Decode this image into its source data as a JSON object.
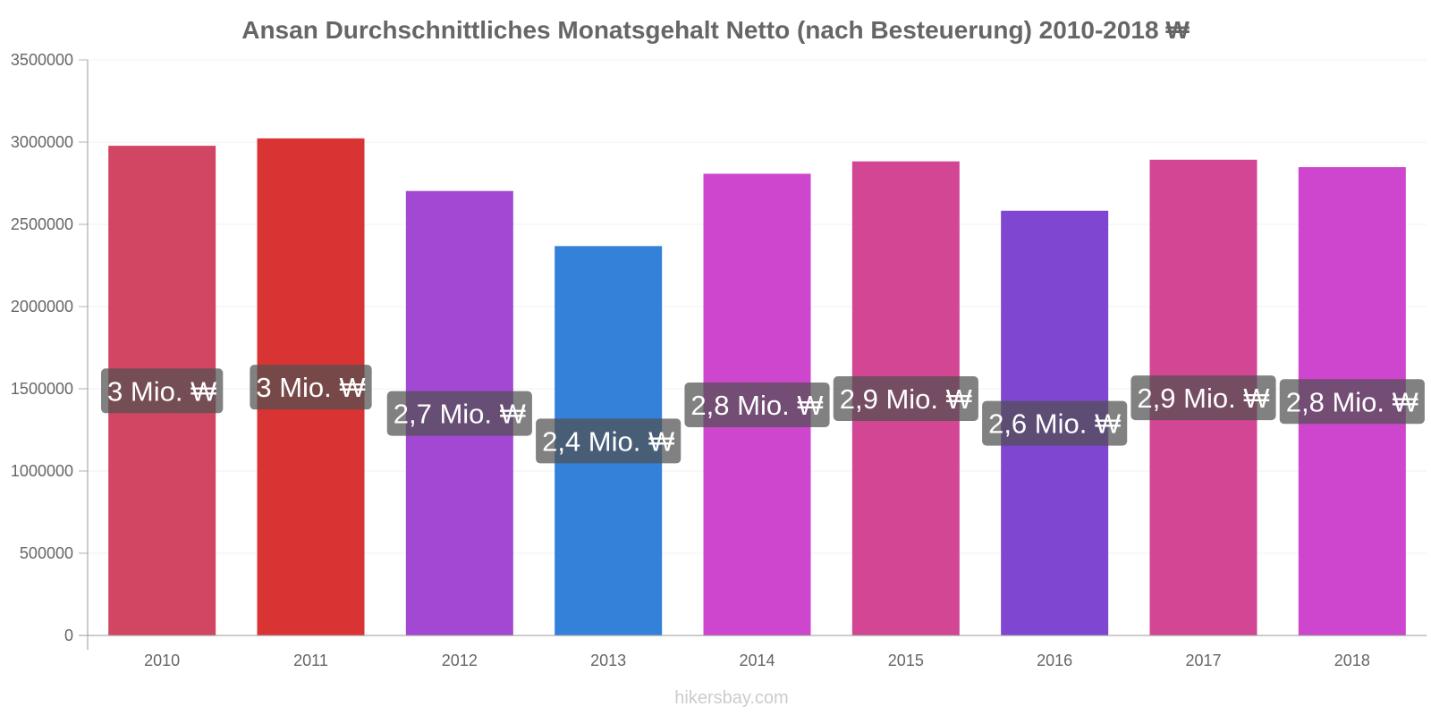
{
  "chart_data": {
    "type": "bar",
    "title": "Ansan Durchschnittliches Monatsgehalt Netto (nach Besteuerung) 2010-2018 ₩",
    "xlabel": "",
    "ylabel": "",
    "categories": [
      "2010",
      "2011",
      "2012",
      "2013",
      "2014",
      "2015",
      "2016",
      "2017",
      "2018"
    ],
    "values": [
      2975000,
      3020000,
      2700000,
      2365000,
      2805000,
      2880000,
      2580000,
      2890000,
      2845000
    ],
    "data_labels": [
      "3 Mio. ₩",
      "3 Mio. ₩",
      "2,7 Mio. ₩",
      "2,4 Mio. ₩",
      "2,8 Mio. ₩",
      "2,9 Mio. ₩",
      "2,6 Mio. ₩",
      "2,9 Mio. ₩",
      "2,8 Mio. ₩"
    ],
    "bar_colors": [
      "#d64866",
      "#e03535",
      "#a84ad8",
      "#3685e0",
      "#d448d4",
      "#d84899",
      "#8348d8",
      "#d84899",
      "#d448d4"
    ],
    "ylim": [
      0,
      3500000
    ],
    "yticks": [
      "0",
      "500000",
      "1000000",
      "1500000",
      "2000000",
      "2500000",
      "3000000",
      "3500000"
    ],
    "grid": true,
    "legend": "none"
  },
  "footer": {
    "credit": "hikersbay.com"
  }
}
